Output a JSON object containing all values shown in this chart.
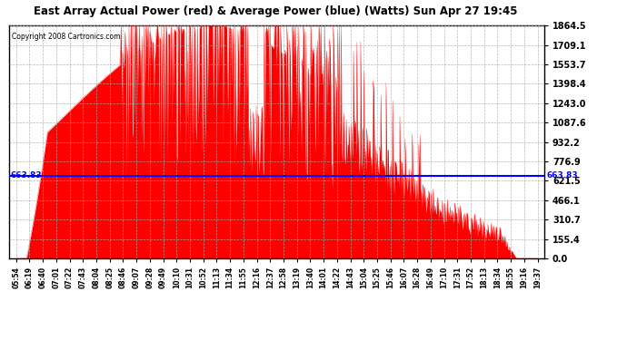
{
  "title": "East Array Actual Power (red) & Average Power (blue) (Watts) Sun Apr 27 19:45",
  "copyright": "Copyright 2008 Cartronics.com",
  "average_power": 663.83,
  "ymax": 1864.5,
  "yticks": [
    0.0,
    155.4,
    310.7,
    466.1,
    621.5,
    776.9,
    932.2,
    1087.6,
    1243.0,
    1398.4,
    1553.7,
    1709.1,
    1864.5
  ],
  "line_color": "blue",
  "fill_color": "red",
  "background_color": "#ffffff",
  "xtick_labels": [
    "05:54",
    "06:19",
    "06:40",
    "07:01",
    "07:22",
    "07:43",
    "08:04",
    "08:25",
    "08:46",
    "09:07",
    "09:28",
    "09:49",
    "10:10",
    "10:31",
    "10:52",
    "11:13",
    "11:34",
    "11:55",
    "12:16",
    "12:37",
    "12:58",
    "13:19",
    "13:40",
    "14:01",
    "14:22",
    "14:43",
    "15:04",
    "15:25",
    "15:46",
    "16:07",
    "16:28",
    "16:49",
    "17:10",
    "17:31",
    "17:52",
    "18:13",
    "18:34",
    "18:55",
    "19:16",
    "19:37"
  ],
  "avg_label": "663.83"
}
